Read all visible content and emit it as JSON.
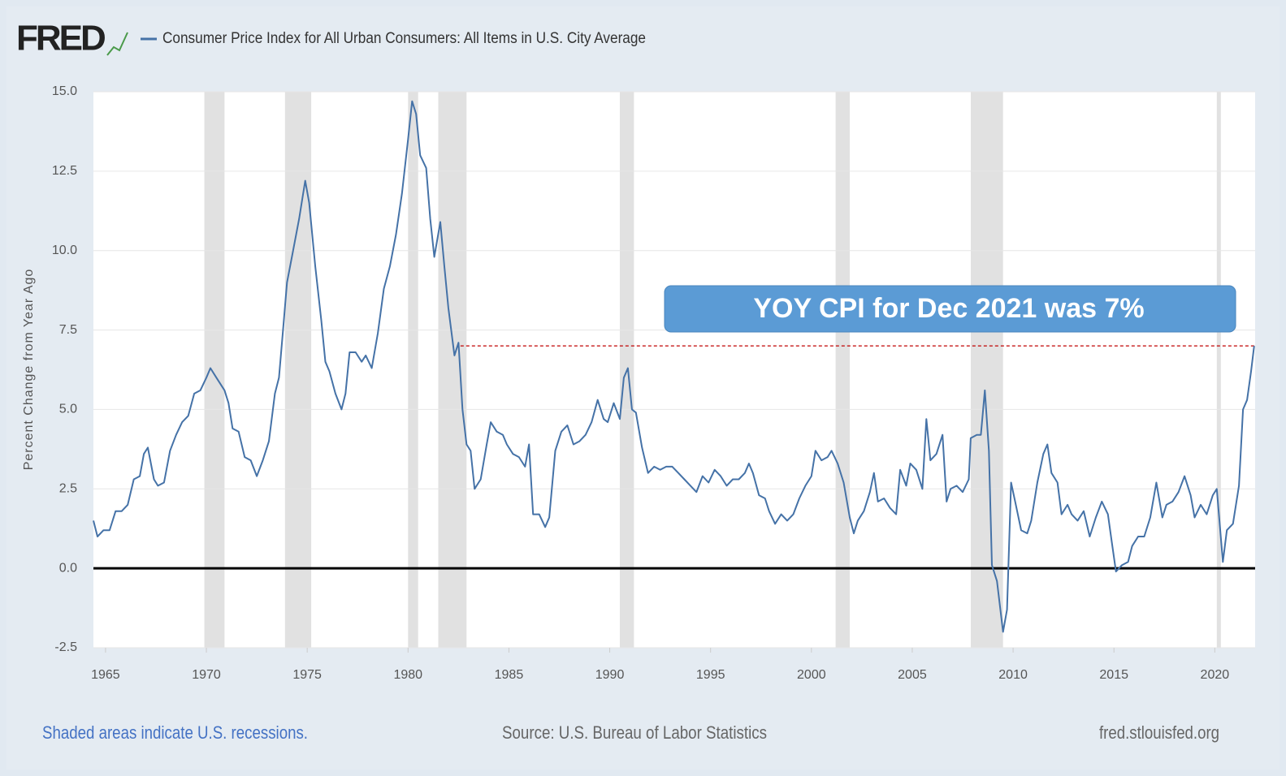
{
  "logo": "FRED",
  "footer": {
    "note": "Shaded areas indicate U.S. recessions.",
    "source": "Source: U.S. Bureau of Labor Statistics",
    "site": "fred.stlouisfed.org"
  },
  "chart_data": {
    "type": "line",
    "y_label": "Percent Change from Year Ago",
    "series": [
      {
        "name": "Consumer Price Index for All Urban Consumers: All Items in U.S. City Average",
        "color": "#4572a7",
        "x": [
          1964.4,
          1964.6,
          1964.9,
          1965.2,
          1965.5,
          1965.8,
          1966.1,
          1966.4,
          1966.7,
          1966.9,
          1967.1,
          1967.4,
          1967.6,
          1967.9,
          1968.2,
          1968.5,
          1968.8,
          1969.1,
          1969.4,
          1969.7,
          1970.0,
          1970.2,
          1970.5,
          1970.9,
          1971.1,
          1971.3,
          1971.6,
          1971.9,
          1972.2,
          1972.5,
          1972.8,
          1973.1,
          1973.4,
          1973.6,
          1973.8,
          1974.0,
          1974.3,
          1974.6,
          1974.9,
          1975.1,
          1975.4,
          1975.7,
          1975.9,
          1976.1,
          1976.4,
          1976.7,
          1976.9,
          1977.1,
          1977.4,
          1977.7,
          1977.9,
          1978.2,
          1978.5,
          1978.8,
          1979.1,
          1979.4,
          1979.7,
          1980.0,
          1980.2,
          1980.4,
          1980.6,
          1980.9,
          1981.1,
          1981.3,
          1981.6,
          1981.8,
          1982.0,
          1982.3,
          1982.5,
          1982.7,
          1982.9,
          1983.1,
          1983.3,
          1983.6,
          1983.9,
          1984.1,
          1984.4,
          1984.7,
          1984.9,
          1985.2,
          1985.5,
          1985.8,
          1986.0,
          1986.2,
          1986.5,
          1986.8,
          1987.0,
          1987.3,
          1987.6,
          1987.9,
          1988.2,
          1988.5,
          1988.8,
          1989.1,
          1989.4,
          1989.7,
          1989.9,
          1990.2,
          1990.5,
          1990.7,
          1990.9,
          1991.1,
          1991.3,
          1991.6,
          1991.9,
          1992.2,
          1992.5,
          1992.8,
          1993.1,
          1993.4,
          1993.7,
          1994.0,
          1994.3,
          1994.6,
          1994.9,
          1995.2,
          1995.5,
          1995.8,
          1996.1,
          1996.4,
          1996.7,
          1996.9,
          1997.1,
          1997.4,
          1997.7,
          1997.9,
          1998.2,
          1998.5,
          1998.8,
          1999.1,
          1999.4,
          1999.7,
          2000.0,
          2000.2,
          2000.5,
          2000.8,
          2001.0,
          2001.3,
          2001.6,
          2001.9,
          2002.1,
          2002.3,
          2002.6,
          2002.9,
          2003.1,
          2003.3,
          2003.6,
          2003.9,
          2004.2,
          2004.4,
          2004.7,
          2004.9,
          2005.2,
          2005.5,
          2005.7,
          2005.9,
          2006.2,
          2006.5,
          2006.7,
          2006.9,
          2007.2,
          2007.5,
          2007.8,
          2007.9,
          2008.2,
          2008.4,
          2008.6,
          2008.8,
          2008.95,
          2009.2,
          2009.5,
          2009.7,
          2009.9,
          2010.1,
          2010.4,
          2010.7,
          2010.9,
          2011.2,
          2011.5,
          2011.7,
          2011.9,
          2012.2,
          2012.4,
          2012.7,
          2012.9,
          2013.2,
          2013.5,
          2013.8,
          2014.1,
          2014.4,
          2014.7,
          2014.9,
          2015.1,
          2015.4,
          2015.7,
          2015.9,
          2016.2,
          2016.5,
          2016.8,
          2017.1,
          2017.4,
          2017.6,
          2017.9,
          2018.2,
          2018.5,
          2018.8,
          2019.0,
          2019.3,
          2019.6,
          2019.9,
          2020.1,
          2020.4,
          2020.6,
          2020.9,
          2021.2,
          2021.4,
          2021.6,
          2021.8,
          2021.95
        ],
        "values": [
          1.5,
          1.0,
          1.2,
          1.2,
          1.8,
          1.8,
          2.0,
          2.8,
          2.9,
          3.6,
          3.8,
          2.8,
          2.6,
          2.7,
          3.7,
          4.2,
          4.6,
          4.8,
          5.5,
          5.6,
          6.0,
          6.3,
          6.0,
          5.6,
          5.2,
          4.4,
          4.3,
          3.5,
          3.4,
          2.9,
          3.4,
          4.0,
          5.5,
          6.0,
          7.5,
          9.0,
          10.0,
          11.0,
          12.2,
          11.5,
          9.5,
          7.8,
          6.5,
          6.2,
          5.5,
          5.0,
          5.5,
          6.8,
          6.8,
          6.5,
          6.7,
          6.3,
          7.4,
          8.8,
          9.5,
          10.5,
          11.8,
          13.5,
          14.7,
          14.3,
          13.0,
          12.6,
          11.0,
          9.8,
          10.9,
          9.5,
          8.2,
          6.7,
          7.1,
          5.0,
          3.9,
          3.7,
          2.5,
          2.8,
          3.9,
          4.6,
          4.3,
          4.2,
          3.9,
          3.6,
          3.5,
          3.2,
          3.9,
          1.7,
          1.7,
          1.3,
          1.6,
          3.7,
          4.3,
          4.5,
          3.9,
          4.0,
          4.2,
          4.6,
          5.3,
          4.7,
          4.6,
          5.2,
          4.7,
          6.0,
          6.3,
          5.0,
          4.9,
          3.8,
          3.0,
          3.2,
          3.1,
          3.2,
          3.2,
          3.0,
          2.8,
          2.6,
          2.4,
          2.9,
          2.7,
          3.1,
          2.9,
          2.6,
          2.8,
          2.8,
          3.0,
          3.3,
          3.0,
          2.3,
          2.2,
          1.8,
          1.4,
          1.7,
          1.5,
          1.7,
          2.2,
          2.6,
          2.9,
          3.7,
          3.4,
          3.5,
          3.7,
          3.3,
          2.7,
          1.6,
          1.1,
          1.5,
          1.8,
          2.4,
          3.0,
          2.1,
          2.2,
          1.9,
          1.7,
          3.1,
          2.6,
          3.3,
          3.1,
          2.5,
          4.7,
          3.4,
          3.6,
          4.2,
          2.1,
          2.5,
          2.6,
          2.4,
          2.8,
          4.1,
          4.2,
          4.2,
          5.6,
          3.7,
          0.1,
          -0.4,
          -2.0,
          -1.3,
          2.7,
          2.1,
          1.2,
          1.1,
          1.5,
          2.7,
          3.6,
          3.9,
          3.0,
          2.7,
          1.7,
          2.0,
          1.7,
          1.5,
          1.8,
          1.0,
          1.6,
          2.1,
          1.7,
          0.8,
          -0.1,
          0.1,
          0.2,
          0.7,
          1.0,
          1.0,
          1.6,
          2.7,
          1.6,
          2.0,
          2.1,
          2.4,
          2.9,
          2.3,
          1.6,
          2.0,
          1.7,
          2.3,
          2.5,
          0.2,
          1.2,
          1.4,
          2.6,
          5.0,
          5.3,
          6.2,
          7.0
        ]
      }
    ],
    "xlim": [
      1964.4,
      2022.0
    ],
    "ylim": [
      -2.5,
      15
    ],
    "xticks": [
      1965,
      1970,
      1975,
      1980,
      1985,
      1990,
      1995,
      2000,
      2005,
      2010,
      2015,
      2020
    ],
    "yticks": [
      -2.5,
      {
        "value": 0,
        "label": "0.0"
      },
      2.5,
      {
        "value": 5,
        "label": "5.0"
      },
      7.5,
      {
        "value": 10,
        "label": "10.0"
      },
      12.5,
      {
        "value": 15,
        "label": "15.0"
      }
    ],
    "grid": true,
    "recessions": [
      [
        1969.9,
        1970.9
      ],
      [
        1973.9,
        1975.2
      ],
      [
        1980.0,
        1980.5
      ],
      [
        1981.5,
        1982.9
      ],
      [
        1990.5,
        1991.2
      ],
      [
        2001.2,
        2001.9
      ],
      [
        2007.9,
        2009.5
      ],
      [
        2020.1,
        2020.3
      ]
    ],
    "recession_color": "#e1e1e1",
    "annotation": {
      "text": "YOY CPI for Dec 2021 was 7%",
      "value": 7.0,
      "x_start": 1982.6,
      "color": "#c00000"
    }
  }
}
